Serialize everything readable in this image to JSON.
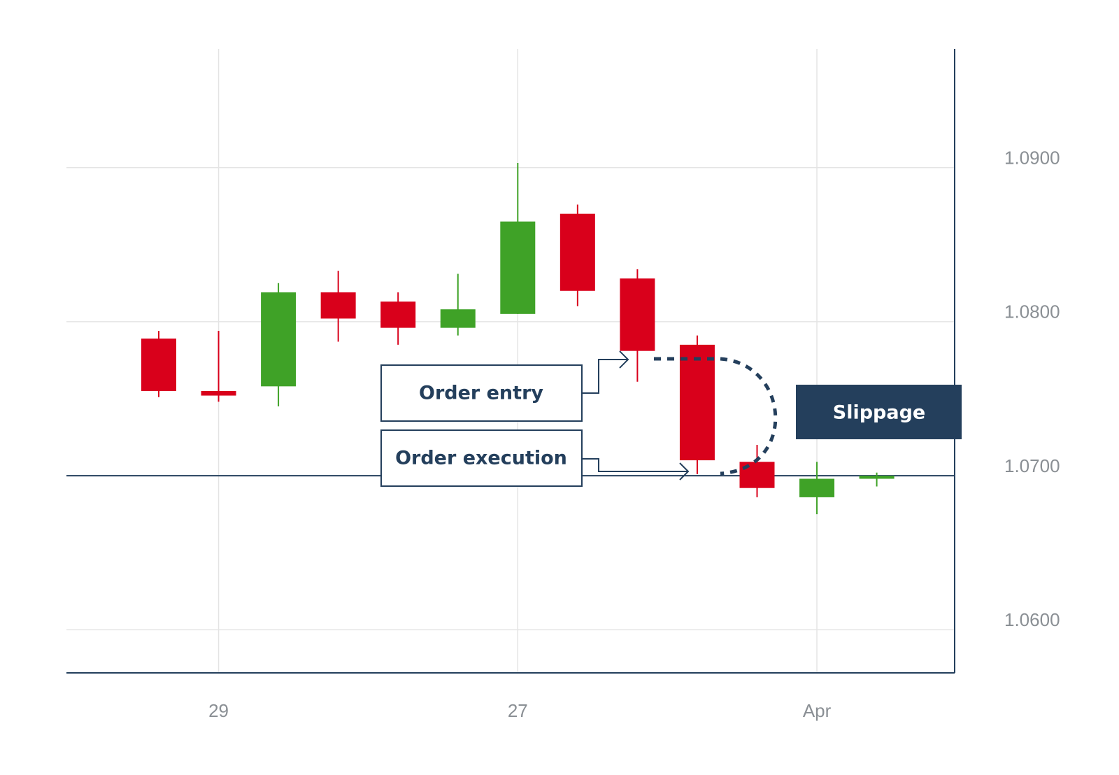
{
  "chart_data": {
    "type": "candlestick",
    "categories": [
      null,
      "29",
      null,
      null,
      null,
      null,
      "27",
      null,
      null,
      null,
      null,
      "Apr",
      null
    ],
    "open": [
      1.0789,
      1.0755,
      1.0758,
      1.0819,
      1.0813,
      1.0796,
      1.0805,
      1.087,
      1.0828,
      1.0785,
      1.0709,
      1.0686,
      1.0698
    ],
    "high": [
      1.0794,
      1.0794,
      1.0825,
      1.0833,
      1.0819,
      1.0831,
      1.0903,
      1.0876,
      1.0834,
      1.0791,
      1.072,
      1.0709,
      1.0702
    ],
    "low": [
      1.0751,
      1.0748,
      1.0745,
      1.0787,
      1.0785,
      1.0791,
      1.0805,
      1.081,
      1.0761,
      1.0701,
      1.0686,
      1.0675,
      1.0693
    ],
    "close": [
      1.0755,
      1.0752,
      1.0819,
      1.0802,
      1.0796,
      1.0808,
      1.0865,
      1.082,
      1.0781,
      1.071,
      1.0692,
      1.0698,
      1.07
    ],
    "up_color": "#3fa227",
    "down_color": "#d9001b",
    "ylim": [
      1.0572,
      1.0977
    ],
    "yticks": [
      {
        "value": 1.06,
        "label": "1.0600"
      },
      {
        "value": 1.07,
        "label": "1.0700"
      },
      {
        "value": 1.08,
        "label": "1.0800"
      },
      {
        "value": 1.09,
        "label": "1.0900"
      }
    ],
    "reference_line": 1.07,
    "annotations": {
      "entry": "Order entry",
      "execution": "Order execution",
      "slippage": "Slippage"
    },
    "grid": true
  }
}
